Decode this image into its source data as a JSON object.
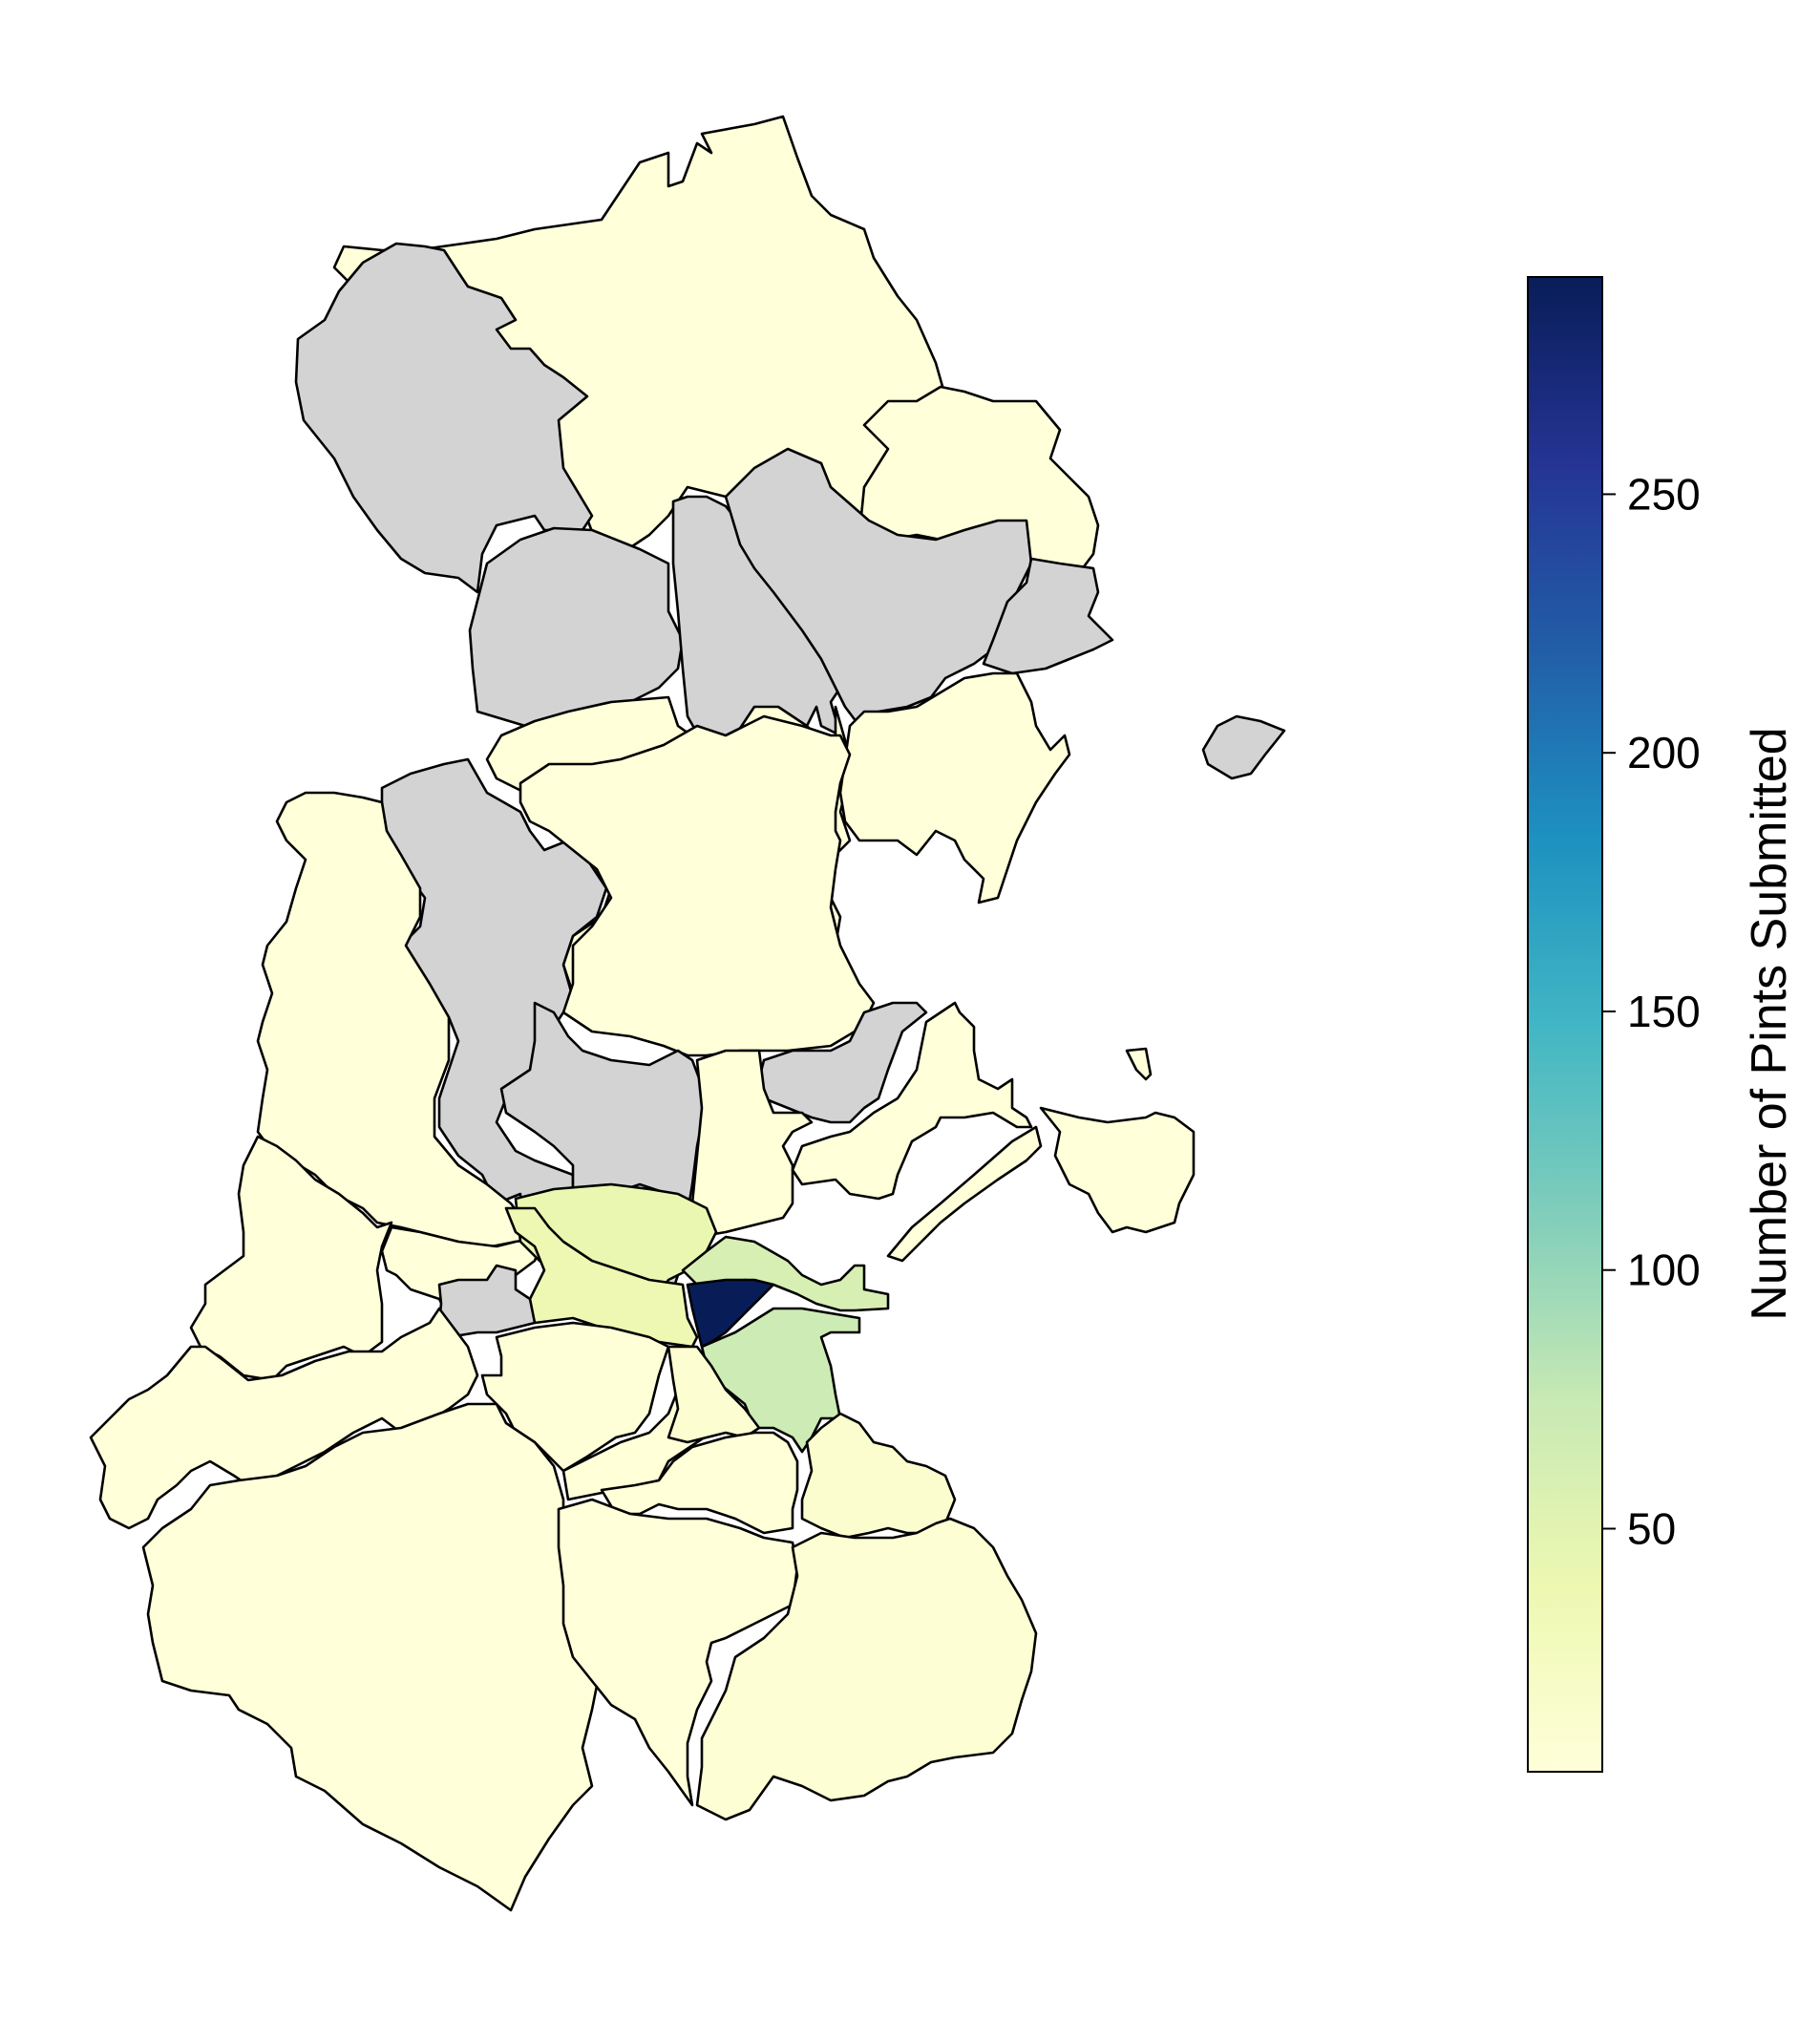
{
  "colorbar": {
    "label": "Number of Pints Submitted",
    "min": 3,
    "max": 292,
    "ticks": [
      50,
      100,
      150,
      200,
      250
    ],
    "tick_labels": [
      "50",
      "100",
      "150",
      "200",
      "250"
    ],
    "colormap": "YlGnBu",
    "stops": [
      "#ffffd9",
      "#edf8b1",
      "#c7e9b4",
      "#7fcdbb",
      "#41b6c4",
      "#1d91c0",
      "#225ea8",
      "#253494",
      "#081d58"
    ]
  },
  "no_data_color": "#d3d3d3",
  "edge_color": "#000000",
  "regions": [
    {
      "id": "north-coast-large",
      "value": 3
    },
    {
      "id": "northwest-grey",
      "value": null
    },
    {
      "id": "northeast-coast",
      "value": 3
    },
    {
      "id": "north-central-grey-west",
      "value": null
    },
    {
      "id": "north-central-grey-mid",
      "value": null
    },
    {
      "id": "north-central-grey-east",
      "value": null
    },
    {
      "id": "northeast-grey-small",
      "value": null
    },
    {
      "id": "island-grey",
      "value": null
    },
    {
      "id": "mid-north-yellow",
      "value": 3
    },
    {
      "id": "mid-northeast-coast",
      "value": 3
    },
    {
      "id": "west-grey-strip",
      "value": null
    },
    {
      "id": "west-large-yellow",
      "value": 3
    },
    {
      "id": "central-north-yellow",
      "value": 3
    },
    {
      "id": "central-grey",
      "value": null
    },
    {
      "id": "inner-northeast-grey",
      "value": null
    },
    {
      "id": "inner-north-yellow",
      "value": 4
    },
    {
      "id": "northeast-inner-coast",
      "value": 3
    },
    {
      "id": "peninsula-east",
      "value": 3
    },
    {
      "id": "far-west-yellow",
      "value": 3
    },
    {
      "id": "west-central-yellow",
      "value": 3
    },
    {
      "id": "city-northwest",
      "value": 42
    },
    {
      "id": "city-north",
      "value": 60
    },
    {
      "id": "city-centre",
      "value": 292
    },
    {
      "id": "city-south",
      "value": 70
    },
    {
      "id": "city-west",
      "value": 38
    },
    {
      "id": "inner-west-grey",
      "value": null
    },
    {
      "id": "south-inner-yellow",
      "value": 5
    },
    {
      "id": "southwest-yellow",
      "value": 3
    },
    {
      "id": "far-southwest-large",
      "value": 3
    },
    {
      "id": "south-central-yellow",
      "value": 4
    },
    {
      "id": "southeast-inner",
      "value": 10
    },
    {
      "id": "south-mid-yellow",
      "value": 4
    },
    {
      "id": "southeast-coast",
      "value": 12
    },
    {
      "id": "south-large-yellow",
      "value": 3
    },
    {
      "id": "south-coast-strip",
      "value": 8
    },
    {
      "id": "bull-island",
      "value": 3
    },
    {
      "id": "islet-small",
      "value": 3
    }
  ]
}
